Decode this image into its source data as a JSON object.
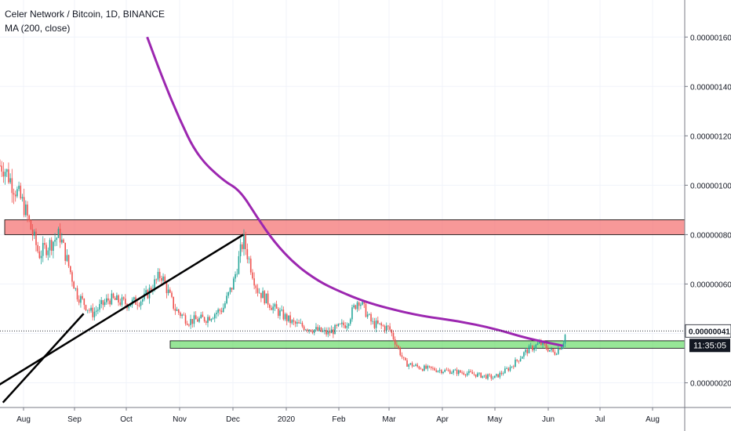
{
  "legend": {
    "title": "Celer Network / Bitcoin, 1D, BINANCE",
    "indicator": "MA (200, close)"
  },
  "chart_data": {
    "type": "candlestick",
    "title": "Celer Network / Bitcoin, 1D, BINANCE",
    "x_ticks": [
      "Aug",
      "Sep",
      "Oct",
      "Nov",
      "Dec",
      "2020",
      "Feb",
      "Mar",
      "Apr",
      "May",
      "Jun",
      "Jul",
      "Aug"
    ],
    "y_ticks": [
      "0.00000020",
      "0.00000040",
      "0.00000060",
      "0.00000080",
      "0.00000100",
      "0.00000120",
      "0.00000140",
      "0.00000160"
    ],
    "ylim": [
      1e-07,
      1.75e-06
    ],
    "last_price_label": "0.00000041",
    "countdown_label": "11:35:05",
    "last_price": 4.1e-07,
    "colors": {
      "up": "#26a69a",
      "down": "#ef5350",
      "ma": "#9c27b0",
      "resistance_zone": "#f36c6c",
      "support_zone": "#6bdc6b"
    },
    "series": [
      {
        "name": "MA (200, close)",
        "points": [
          [
            "Oct 12",
            1.6e-06
          ],
          [
            "Oct 20",
            1.45e-06
          ],
          [
            "Oct 30",
            1.28e-06
          ],
          [
            "Nov 10",
            1.12e-06
          ],
          [
            "Nov 25",
            1.02e-06
          ],
          [
            "Dec 5",
            9.8e-07
          ],
          [
            "Dec 15",
            8.7e-07
          ],
          [
            "Dec 25",
            7.7e-07
          ],
          [
            "Jan 6",
            6.8e-07
          ],
          [
            "Jan 20",
            6.1e-07
          ],
          [
            "Feb 1",
            5.7e-07
          ],
          [
            "Feb 15",
            5.3e-07
          ],
          [
            "Mar 1",
            5e-07
          ],
          [
            "Mar 20",
            4.7e-07
          ],
          [
            "Apr 10",
            4.5e-07
          ],
          [
            "May 1",
            4.2e-07
          ],
          [
            "May 20",
            3.8e-07
          ],
          [
            "Jun 10",
            3.5e-07
          ]
        ]
      },
      {
        "name": "price",
        "points": [
          [
            "Jul 20",
            1.08e-06
          ],
          [
            "Aug 1",
            9.2e-07
          ],
          [
            "Aug 10",
            7.2e-07
          ],
          [
            "Aug 22",
            8e-07
          ],
          [
            "Sep 1",
            5.6e-07
          ],
          [
            "Sep 10",
            4.8e-07
          ],
          [
            "Sep 20",
            5.4e-07
          ],
          [
            "Oct 1",
            5.2e-07
          ],
          [
            "Oct 10",
            5.4e-07
          ],
          [
            "Oct 20",
            6.4e-07
          ],
          [
            "Oct 28",
            5e-07
          ],
          [
            "Nov 5",
            4.5e-07
          ],
          [
            "Nov 15",
            4.6e-07
          ],
          [
            "Nov 25",
            5e-07
          ],
          [
            "Dec 1",
            6e-07
          ],
          [
            "Dec 7",
            7.8e-07
          ],
          [
            "Dec 15",
            5.8e-07
          ],
          [
            "Dec 25",
            5e-07
          ],
          [
            "Jan 5",
            4.4e-07
          ],
          [
            "Jan 15",
            4.2e-07
          ],
          [
            "Jan 25",
            4e-07
          ],
          [
            "Feb 5",
            4.4e-07
          ],
          [
            "Feb 12",
            5.4e-07
          ],
          [
            "Feb 20",
            4.4e-07
          ],
          [
            "Mar 1",
            4.2e-07
          ],
          [
            "Mar 10",
            2.8e-07
          ],
          [
            "Mar 20",
            2.6e-07
          ],
          [
            "Apr 1",
            2.5e-07
          ],
          [
            "Apr 15",
            2.4e-07
          ],
          [
            "May 1",
            2.2e-07
          ],
          [
            "May 10",
            2.6e-07
          ],
          [
            "May 20",
            3.3e-07
          ],
          [
            "May 28",
            3.6e-07
          ],
          [
            "Jun 5",
            3.2e-07
          ],
          [
            "Jun 10",
            3.6e-07
          ],
          [
            "Jun 12",
            4.1e-07
          ]
        ]
      }
    ],
    "zones": [
      {
        "name": "resistance-zone",
        "from": 8e-07,
        "to": 8.6e-07,
        "x_from": "Jul 20",
        "x_to": "Aug 5 2020"
      },
      {
        "name": "support-zone",
        "from": 3.4e-07,
        "to": 3.7e-07,
        "x_from": "Oct 28",
        "x_to": "Aug 5 2020"
      }
    ],
    "trendlines": [
      {
        "name": "upper-trendline",
        "from": [
          "Dec 7",
          8e-07
        ],
        "to": [
          "Jul 1",
          1.2e-07
        ]
      },
      {
        "name": "lower-trendline",
        "from": [
          "Sep 5",
          4.8e-07
        ],
        "to": [
          "Jul 20",
          1.2e-07
        ]
      }
    ]
  }
}
